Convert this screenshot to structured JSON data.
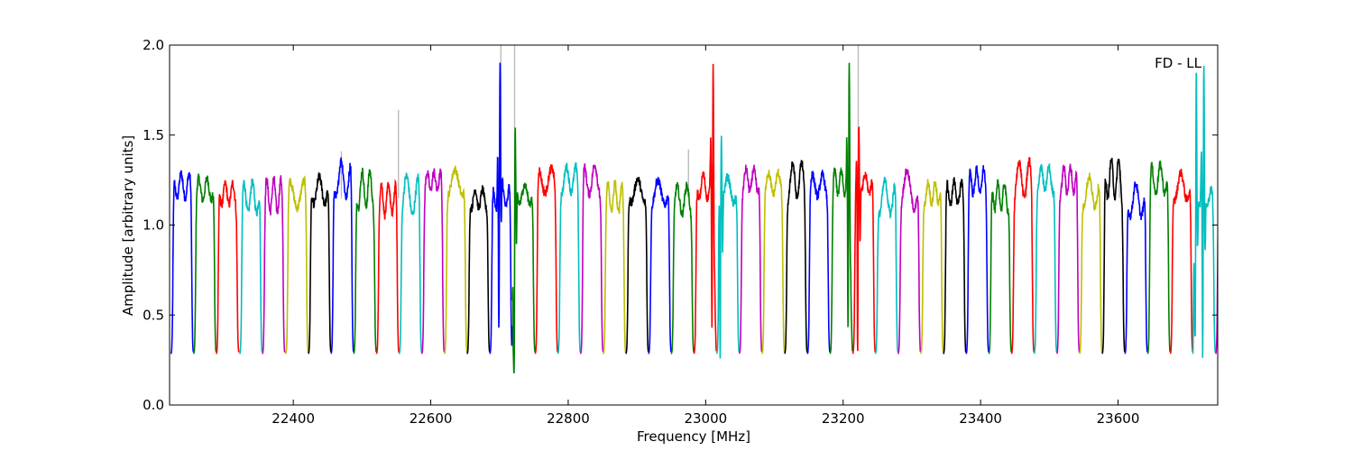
{
  "chart_data": {
    "type": "line",
    "title": "",
    "xlabel": "Frequency [MHz]",
    "ylabel": "Amplitude [arbitrary units]",
    "annotation": "FD - LL",
    "xlim": [
      22220,
      23745
    ],
    "ylim": [
      0.0,
      2.0
    ],
    "xticks": [
      22400,
      22600,
      22800,
      23000,
      23200,
      23400,
      23600
    ],
    "yticks": [
      0.0,
      0.5,
      1.0,
      1.5,
      2.0
    ],
    "xtick_labels": [
      "22400",
      "22600",
      "22800",
      "23000",
      "23200",
      "23400",
      "23600"
    ],
    "ytick_labels": [
      "0.0",
      "0.5",
      "1.0",
      "1.5",
      "2.0"
    ],
    "grid": false,
    "legend": "none",
    "background_trace_color": "#bbbbbb",
    "color_cycle": [
      "#0000ff",
      "#008000",
      "#ff0000",
      "#00bfbf",
      "#bf00bf",
      "#bfbf00",
      "#000000"
    ],
    "channel_width_mhz": 32.6,
    "channel_dip_min": 0.28,
    "channel_plateau": 1.2,
    "channel_edge_x": [
      22222,
      22255,
      22288,
      22322,
      22355,
      22389,
      22422,
      22455,
      22488,
      22521,
      22554,
      22587,
      22620,
      22653,
      22686,
      22719,
      22752,
      22785,
      22818,
      22851,
      22884,
      22917,
      22950,
      22983,
      23016,
      23049,
      23082,
      23115,
      23148,
      23181,
      23214,
      23247,
      23280,
      23313,
      23346,
      23379,
      23412,
      23445,
      23478,
      23511,
      23544,
      23577,
      23610,
      23643,
      23676,
      23709,
      23742
    ],
    "strong_features": [
      {
        "x": 22700,
        "peak": 2.0,
        "min": 0.3
      },
      {
        "x": 22722,
        "peak": 1.62,
        "min": 0.13
      },
      {
        "x": 23010,
        "peak": 2.0,
        "min": 0.3
      },
      {
        "x": 23022,
        "peak": 1.55,
        "min": 0.12
      },
      {
        "x": 23208,
        "peak": 2.0,
        "min": 0.3
      },
      {
        "x": 23222,
        "peak": 1.6,
        "min": 0.13
      },
      {
        "x": 23713,
        "peak": 2.0,
        "min": 0.3
      },
      {
        "x": 23724,
        "peak": 2.0,
        "min": 0.12
      }
    ],
    "gray_spikes": [
      {
        "x": 22470,
        "y": 1.41
      },
      {
        "x": 22553,
        "y": 1.64
      },
      {
        "x": 22702,
        "y": 2.0
      },
      {
        "x": 22722,
        "y": 2.0
      },
      {
        "x": 22975,
        "y": 1.42
      },
      {
        "x": 23222,
        "y": 2.0
      },
      {
        "x": 23467,
        "y": 1.33
      },
      {
        "x": 23602,
        "y": 1.28
      }
    ]
  }
}
